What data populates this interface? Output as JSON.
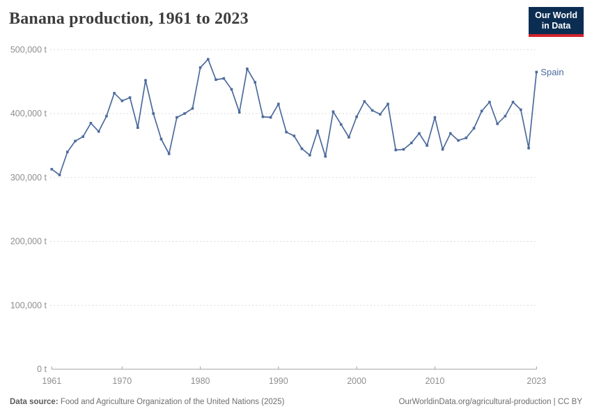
{
  "header": {
    "title": "Banana production, 1961 to 2023",
    "logo": {
      "line1": "Our World",
      "line2": "in Data"
    }
  },
  "chart_data": {
    "type": "line",
    "title": "Banana production, 1961 to 2023",
    "unit": "t",
    "grid": true,
    "legend_position": "end-of-line",
    "xlim": [
      1961,
      2023
    ],
    "ylim": [
      0,
      500000
    ],
    "x_ticks": [
      1961,
      1970,
      1980,
      1990,
      2000,
      2010,
      2023
    ],
    "y_ticks": [
      0,
      100000,
      200000,
      300000,
      400000,
      500000
    ],
    "y_tick_labels": [
      "0 t",
      "100,000 t",
      "200,000 t",
      "300,000 t",
      "400,000 t",
      "500,000 t"
    ],
    "x": [
      1961,
      1962,
      1963,
      1964,
      1965,
      1966,
      1967,
      1968,
      1969,
      1970,
      1971,
      1972,
      1973,
      1974,
      1975,
      1976,
      1977,
      1978,
      1979,
      1980,
      1981,
      1982,
      1983,
      1984,
      1985,
      1986,
      1987,
      1988,
      1989,
      1990,
      1991,
      1992,
      1993,
      1994,
      1995,
      1996,
      1997,
      1998,
      1999,
      2000,
      2001,
      2002,
      2003,
      2004,
      2005,
      2006,
      2007,
      2008,
      2009,
      2010,
      2011,
      2012,
      2013,
      2014,
      2015,
      2016,
      2017,
      2018,
      2019,
      2020,
      2021,
      2022,
      2023
    ],
    "series": [
      {
        "name": "Spain",
        "color": "#4C6A9C",
        "values": [
          313000,
          304000,
          340000,
          357000,
          364000,
          385000,
          372000,
          396000,
          432000,
          420000,
          425000,
          378000,
          452000,
          400000,
          360000,
          337000,
          394000,
          400000,
          408000,
          472000,
          485000,
          453000,
          455000,
          438000,
          402000,
          470000,
          449000,
          395000,
          394000,
          415000,
          371000,
          365000,
          345000,
          335000,
          373000,
          333000,
          403000,
          383000,
          363000,
          395000,
          419000,
          405000,
          399000,
          415000,
          343000,
          344000,
          354000,
          369000,
          350000,
          394000,
          344000,
          369000,
          358000,
          362000,
          377000,
          404000,
          418000,
          384000,
          396000,
          418000,
          406000,
          346000,
          465000
        ]
      }
    ]
  },
  "footer": {
    "data_source_label": "Data source:",
    "data_source_text": " Food and Agriculture Organization of the United Nations (2025)",
    "attribution": "OurWorldinData.org/agricultural-production | CC BY"
  },
  "colors": {
    "line": "#4C6A9C",
    "gridline": "#dadada",
    "axis": "#a1a1a1",
    "tick_label": "#8e8e8e",
    "title": "#3d3d3d",
    "logo_bg": "#0c2d52",
    "logo_red": "#d1232a"
  }
}
